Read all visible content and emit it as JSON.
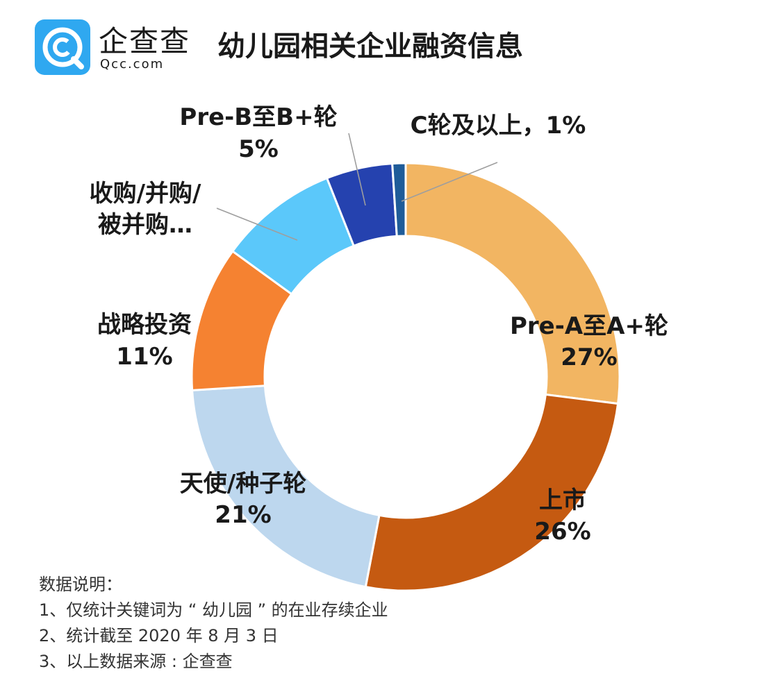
{
  "header": {
    "brand_name": "企查查",
    "brand_url": "Qcc.com",
    "title": "幼儿园相关企业融资信息"
  },
  "chart_data": {
    "type": "pie",
    "donut": true,
    "start": "12 o'clock, clockwise",
    "slices": [
      {
        "name": "Pre-A至A+轮",
        "value": 27,
        "label": "27%",
        "color": "#F2B562"
      },
      {
        "name": "上市",
        "value": 26,
        "label": "26%",
        "color": "#C55A11"
      },
      {
        "name": "天使/种子轮",
        "value": 21,
        "label": "21%",
        "color": "#BDD7EE"
      },
      {
        "name": "战略投资",
        "value": 11,
        "label": "11%",
        "color": "#F58231"
      },
      {
        "name": "收购/并购/被并购…",
        "value": 9,
        "label": "",
        "color": "#5BC8FA"
      },
      {
        "name": "Pre-B至B+轮",
        "value": 5,
        "label": "5%",
        "color": "#2542AF"
      },
      {
        "name": "C轮及以上",
        "value": 1,
        "label": "1%",
        "color": "#1F5C99"
      }
    ],
    "labels": {
      "pre_a_name": "Pre-A至A+轮",
      "pre_a_pct": "27%",
      "ipo_name": "上市",
      "ipo_pct": "26%",
      "angel_name": "天使/种子轮",
      "angel_pct": "21%",
      "strategic_name": "战略投资",
      "strategic_pct": "11%",
      "ma_line1": "收购/并购/",
      "ma_line2": "被并购…",
      "pre_b_name": "Pre-B至B+轮",
      "pre_b_pct": "5%",
      "c_round": "C轮及以上，1%"
    }
  },
  "notes": {
    "heading": "数据说明：",
    "line1": "1、仅统计关键词为 “ 幼儿园 ” 的在业存续企业",
    "line2": "2、统计截至 2020 年 8 月 3 日",
    "line3": "3、以上数据来源 : 企查查"
  },
  "colors": {
    "brand_blue": "#2FA8F0",
    "leader_line": "#9E9E9E"
  }
}
